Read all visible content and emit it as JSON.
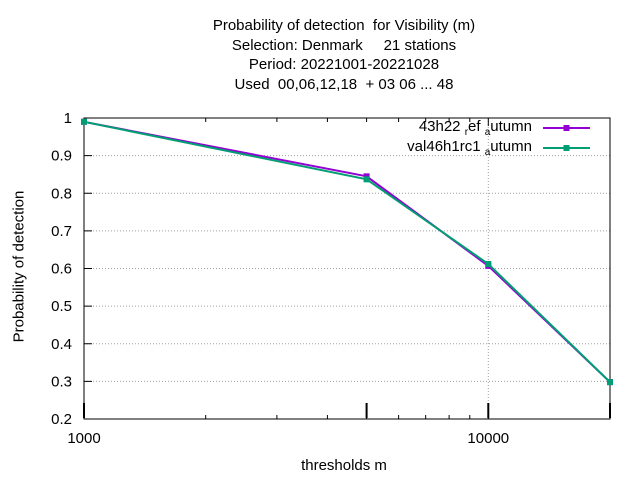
{
  "title": {
    "lines": [
      "Probability of detection  for Visibility (m)",
      "Selection: Denmark     21 stations",
      "Period: 20221001-20221028",
      "Used  00,06,12,18  + 03 06 ... 48"
    ]
  },
  "chart_data": {
    "type": "line",
    "x_scale": "log",
    "xlabel": "thresholds m",
    "ylabel": "Probability of detection",
    "xlim": [
      1000,
      20000
    ],
    "ylim": [
      0.2,
      1.0
    ],
    "x_ticks": [
      {
        "value": 1000,
        "label": "1000"
      },
      {
        "value": 10000,
        "label": "10000"
      }
    ],
    "y_ticks": [
      {
        "value": 0.2,
        "label": "0.2"
      },
      {
        "value": 0.3,
        "label": "0.3"
      },
      {
        "value": 0.4,
        "label": "0.4"
      },
      {
        "value": 0.5,
        "label": "0.5"
      },
      {
        "value": 0.6,
        "label": "0.6"
      },
      {
        "value": 0.7,
        "label": "0.7"
      },
      {
        "value": 0.8,
        "label": "0.8"
      },
      {
        "value": 0.9,
        "label": "0.9"
      },
      {
        "value": 1.0,
        "label": "1"
      }
    ],
    "grid": true,
    "legend_position": "top-right",
    "series": [
      {
        "name": "43h22 ref autumn",
        "legend_parts": [
          "43h22 ",
          "r",
          "ef ",
          "a",
          "utumn"
        ],
        "color": "#9400d3",
        "x": [
          1000,
          5000,
          10000,
          20000
        ],
        "y": [
          0.99,
          0.845,
          0.607,
          0.298
        ]
      },
      {
        "name": "val46h1rc1 autumn",
        "legend_parts": [
          "val46h1rc1 ",
          "a",
          "utumn"
        ],
        "color": "#009e73",
        "x": [
          1000,
          5000,
          10000,
          20000
        ],
        "y": [
          0.99,
          0.837,
          0.612,
          0.298
        ]
      }
    ]
  }
}
